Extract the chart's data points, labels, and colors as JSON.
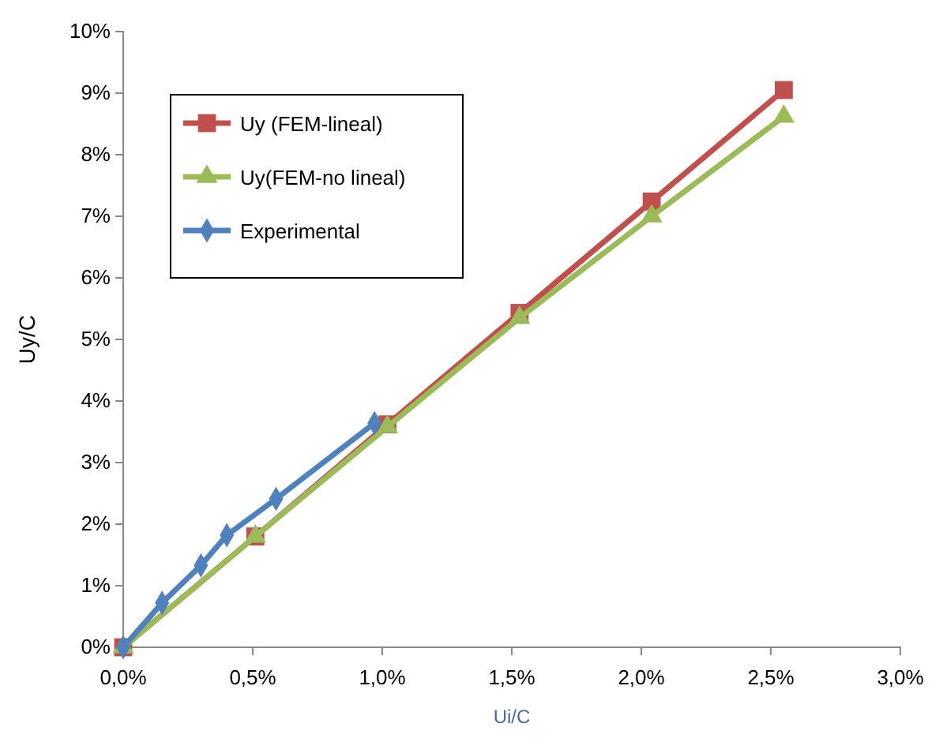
{
  "chart_data": {
    "type": "line",
    "xlabel": "Ui/C",
    "ylabel": "Uy/C",
    "xlim": [
      0,
      3
    ],
    "ylim": [
      0,
      10
    ],
    "xticks": [
      {
        "value": 0,
        "label": "0,0%"
      },
      {
        "value": 0.5,
        "label": "0,5%"
      },
      {
        "value": 1,
        "label": "1,0%"
      },
      {
        "value": 1.5,
        "label": "1,5%"
      },
      {
        "value": 2,
        "label": "2,0%"
      },
      {
        "value": 2.5,
        "label": "2,5%"
      },
      {
        "value": 3,
        "label": "3,0%"
      }
    ],
    "yticks": [
      {
        "value": 0,
        "label": "0%"
      },
      {
        "value": 1,
        "label": "1%"
      },
      {
        "value": 2,
        "label": "2%"
      },
      {
        "value": 3,
        "label": "3%"
      },
      {
        "value": 4,
        "label": "4%"
      },
      {
        "value": 5,
        "label": "5%"
      },
      {
        "value": 6,
        "label": "6%"
      },
      {
        "value": 7,
        "label": "7%"
      },
      {
        "value": 8,
        "label": "8%"
      },
      {
        "value": 9,
        "label": "9%"
      },
      {
        "value": 10,
        "label": "10%"
      }
    ],
    "grid": false,
    "legend": "top left",
    "line_style": "solid",
    "series": [
      {
        "name": "Uy (FEM-lineal)",
        "color": "#c0504d",
        "marker": "square",
        "x": [
          0,
          0.51,
          1.02,
          1.53,
          2.04,
          2.55
        ],
        "values": [
          0,
          1.8,
          3.62,
          5.43,
          7.24,
          9.05
        ]
      },
      {
        "name": "Uy(FEM-no lineal)",
        "color": "#9bbb59",
        "marker": "triangle",
        "x": [
          0,
          0.51,
          1.02,
          1.53,
          2.04,
          2.55
        ],
        "values": [
          0,
          1.8,
          3.58,
          5.35,
          7.0,
          8.62
        ]
      },
      {
        "name": "Experimental",
        "color": "#4f81bd",
        "marker": "diamond",
        "x": [
          0,
          0.15,
          0.3,
          0.4,
          0.59,
          0.97
        ],
        "values": [
          0,
          0.72,
          1.33,
          1.82,
          2.41,
          3.64
        ]
      }
    ]
  }
}
